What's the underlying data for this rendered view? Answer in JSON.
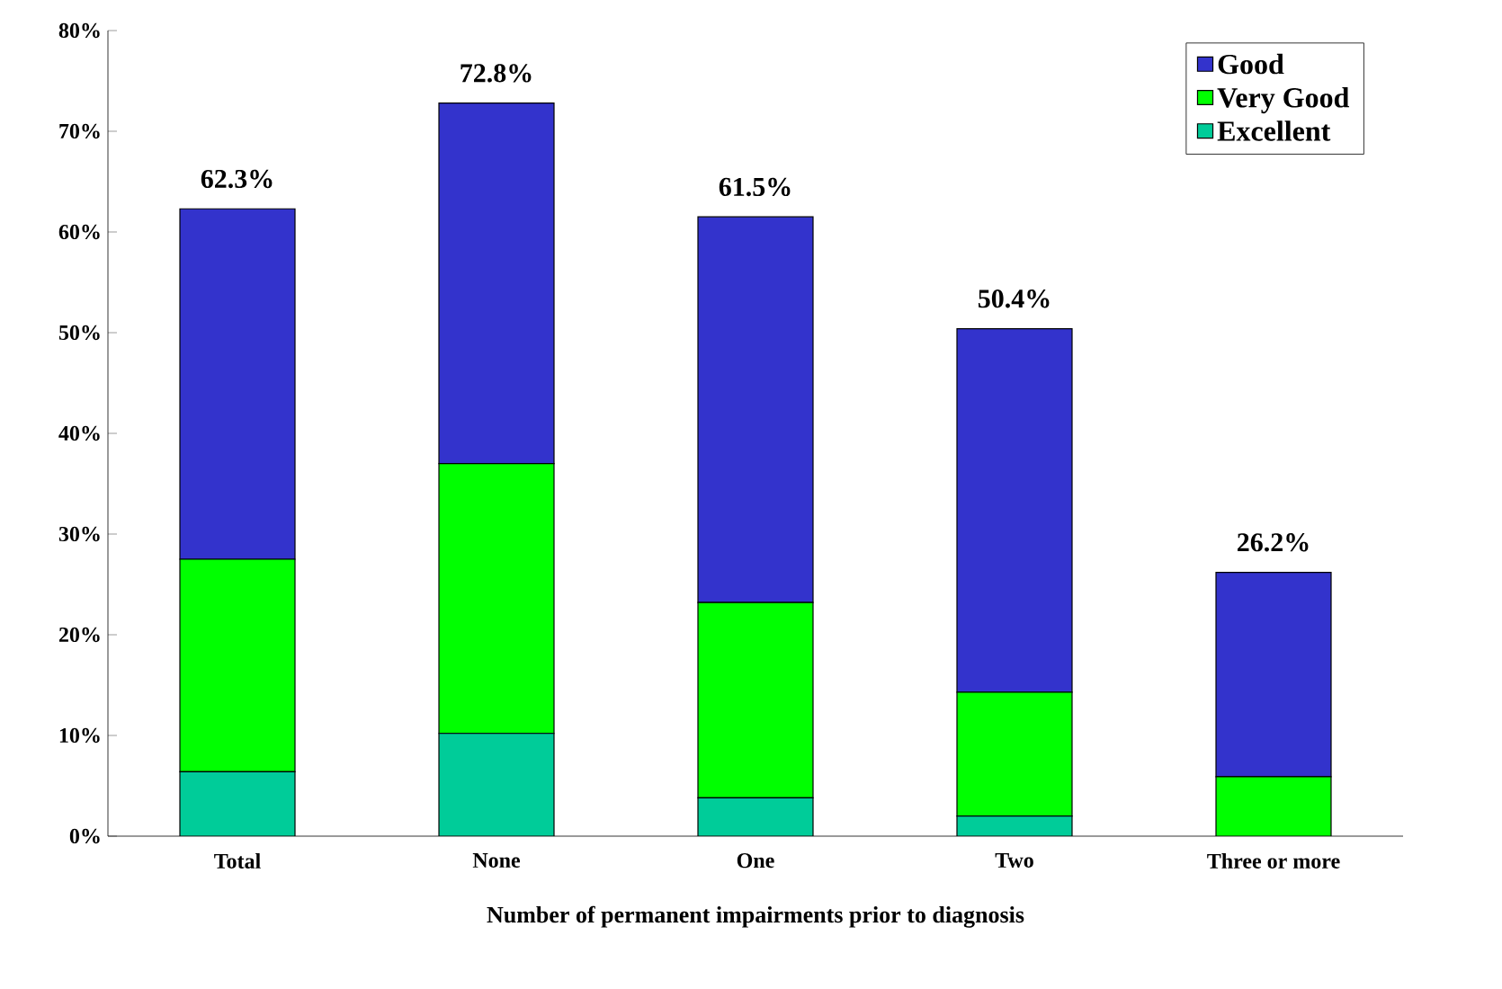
{
  "chart_data": {
    "type": "bar",
    "stacked": true,
    "xlabel": "Number of permanent impairments prior to diagnosis",
    "categories": [
      "Total",
      "None",
      "One",
      "Two",
      "Three or more"
    ],
    "series": [
      {
        "name": "Excellent",
        "color": "#00cc99",
        "values": [
          6.4,
          10.2,
          3.8,
          2.0,
          0
        ]
      },
      {
        "name": "Very Good",
        "color": "#00ff00",
        "values": [
          21.1,
          26.8,
          19.4,
          12.3,
          5.9
        ]
      },
      {
        "name": "Good",
        "color": "#3333cc",
        "values": [
          34.8,
          35.8,
          38.3,
          36.1,
          20.3
        ]
      }
    ],
    "totals": [
      "62.3%",
      "72.8%",
      "61.5%",
      "50.4%",
      "26.2%"
    ],
    "ylim": [
      0,
      80
    ],
    "yticks": [
      {
        "value": 0,
        "label": "0%"
      },
      {
        "value": 10,
        "label": "10%"
      },
      {
        "value": 20,
        "label": "20%"
      },
      {
        "value": 30,
        "label": "30%"
      },
      {
        "value": 40,
        "label": "40%"
      },
      {
        "value": 50,
        "label": "50%"
      },
      {
        "value": 60,
        "label": "60%"
      },
      {
        "value": 70,
        "label": "70%"
      },
      {
        "value": 80,
        "label": "80%"
      }
    ],
    "legend": "top right",
    "grid": false
  }
}
